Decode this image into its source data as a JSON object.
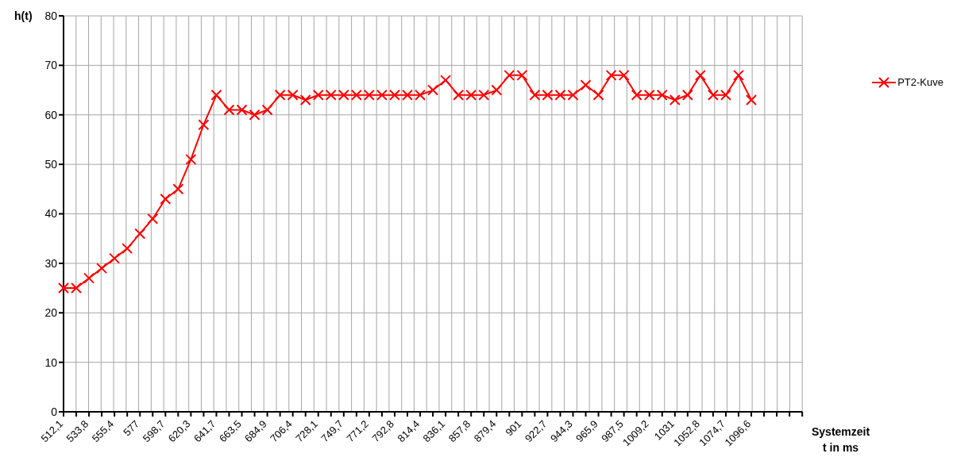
{
  "chart_data": {
    "type": "line",
    "ylabel": "h(t)",
    "xlabel": "Systemzeit\nt in ms",
    "categories": [
      "512,1",
      null,
      "533,8",
      null,
      "555,4",
      null,
      "577",
      null,
      "598,7",
      null,
      "620,3",
      null,
      "641,7",
      null,
      "663,5",
      null,
      "684,9",
      null,
      "706,4",
      null,
      "728,1",
      null,
      "749,7",
      null,
      "771,2",
      null,
      "792,8",
      null,
      "814,4",
      null,
      "836,1",
      null,
      "857,8",
      null,
      "879,4",
      null,
      "901",
      null,
      "922,7",
      null,
      "944,3",
      null,
      "965,9",
      null,
      "987,5",
      null,
      "1009,2",
      null,
      "1031",
      null,
      "1052,8",
      null,
      "1074,7",
      null,
      "1096,6",
      null,
      null,
      null,
      null
    ],
    "series": [
      {
        "name": "PT2-Kuve",
        "color": "#ff0000",
        "values": [
          25,
          25,
          27,
          29,
          31,
          33,
          36,
          39,
          43,
          45,
          51,
          58,
          64,
          61,
          61,
          60,
          61,
          64,
          64,
          63,
          64,
          64,
          64,
          64,
          64,
          64,
          64,
          64,
          64,
          65,
          67,
          64,
          64,
          64,
          65,
          68,
          68,
          64,
          64,
          64,
          64,
          66,
          64,
          68,
          68,
          64,
          64,
          64,
          63,
          64,
          68,
          64,
          64,
          68,
          63,
          null,
          null,
          null,
          null
        ]
      }
    ],
    "ylim": [
      0,
      80
    ],
    "yticks": [
      0,
      10,
      20,
      30,
      40,
      50,
      60,
      70,
      80
    ],
    "grid": true,
    "legend": "right",
    "marker": "cross",
    "line_style": "solid"
  }
}
